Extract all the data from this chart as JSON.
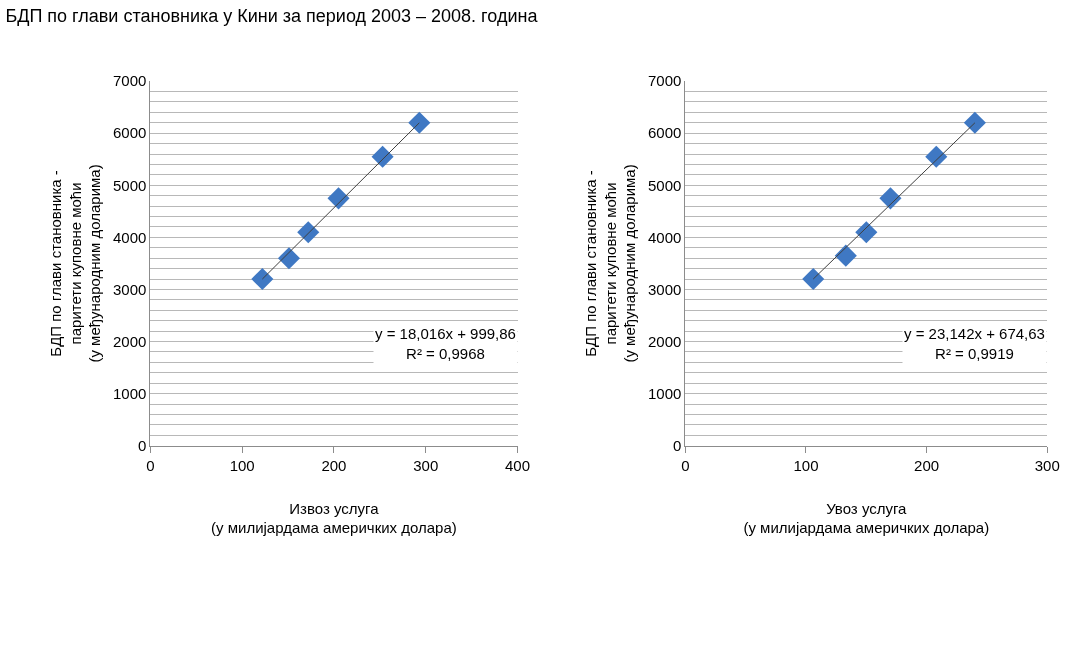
{
  "chart_data": [
    {
      "type": "scatter",
      "title": "БДП по глави становника у Кини за период 2003 – 2008. година",
      "xlabel": "Извоз услуга\n(у милијардама америчких долара)",
      "ylabel": "БДП по глави становника -\nпаритети куповне моћи\n(у међународним доларима)",
      "series": [
        {
          "color": "#3f78c3",
          "x": [
            122,
            151,
            172,
            205,
            253,
            293
          ],
          "values": [
            3200,
            3600,
            4100,
            4750,
            5550,
            6200
          ]
        },
        {
          "type": "line",
          "color": "#404040",
          "marker": "none",
          "x": [
            122,
            293
          ],
          "values": [
            3200,
            6200
          ]
        }
      ],
      "marker": "diamond",
      "xlim": [
        0,
        400
      ],
      "xticks": [
        0,
        100,
        200,
        300,
        400
      ],
      "ylim": [
        0,
        7000
      ],
      "yticks": [
        0,
        {
          "value": 200,
          "label": null
        },
        {
          "value": 400,
          "label": null
        },
        {
          "value": 600,
          "label": null
        },
        {
          "value": 800,
          "label": null
        },
        1000,
        {
          "value": 1200,
          "label": null
        },
        {
          "value": 1400,
          "label": null
        },
        {
          "value": 1600,
          "label": null
        },
        {
          "value": 1800,
          "label": null
        },
        2000,
        {
          "value": 2200,
          "label": null
        },
        {
          "value": 2400,
          "label": null
        },
        {
          "value": 2600,
          "label": null
        },
        {
          "value": 2800,
          "label": null
        },
        3000,
        {
          "value": 3200,
          "label": null
        },
        {
          "value": 3400,
          "label": null
        },
        {
          "value": 3600,
          "label": null
        },
        {
          "value": 3800,
          "label": null
        },
        4000,
        {
          "value": 4200,
          "label": null
        },
        {
          "value": 4400,
          "label": null
        },
        {
          "value": 4600,
          "label": null
        },
        {
          "value": 4800,
          "label": null
        },
        5000,
        {
          "value": 5200,
          "label": null
        },
        {
          "value": 5400,
          "label": null
        },
        {
          "value": 5600,
          "label": null
        },
        {
          "value": 5800,
          "label": null
        },
        6000,
        {
          "value": 6200,
          "label": null
        },
        {
          "value": 6400,
          "label": null
        },
        {
          "value": 6600,
          "label": null
        },
        {
          "value": 6800,
          "label": null
        },
        7000
      ],
      "grid": "y",
      "annotations": [
        "y = 18,016x + 999,86\nR² = 0,9968"
      ]
    },
    {
      "type": "scatter",
      "xlabel": "Увоз услуга\n(у милијардама америчких долара)",
      "ylabel": "БДП по глави становника -\nпаритети куповне моћи\n(у међународним доларима)",
      "series": [
        {
          "color": "#3f78c3",
          "x": [
            106,
            133,
            150,
            170,
            208,
            240
          ],
          "values": [
            3200,
            3650,
            4100,
            4750,
            5550,
            6200
          ]
        },
        {
          "type": "line",
          "color": "#404040",
          "marker": "none",
          "x": [
            106,
            240
          ],
          "values": [
            3200,
            6200
          ]
        }
      ],
      "marker": "diamond",
      "xlim": [
        0,
        300
      ],
      "xticks": [
        0,
        100,
        200,
        300
      ],
      "ylim": [
        0,
        7000
      ],
      "yticks": [
        0,
        {
          "value": 200,
          "label": null
        },
        {
          "value": 400,
          "label": null
        },
        {
          "value": 600,
          "label": null
        },
        {
          "value": 800,
          "label": null
        },
        1000,
        {
          "value": 1200,
          "label": null
        },
        {
          "value": 1400,
          "label": null
        },
        {
          "value": 1600,
          "label": null
        },
        {
          "value": 1800,
          "label": null
        },
        2000,
        {
          "value": 2200,
          "label": null
        },
        {
          "value": 2400,
          "label": null
        },
        {
          "value": 2600,
          "label": null
        },
        {
          "value": 2800,
          "label": null
        },
        3000,
        {
          "value": 3200,
          "label": null
        },
        {
          "value": 3400,
          "label": null
        },
        {
          "value": 3600,
          "label": null
        },
        {
          "value": 3800,
          "label": null
        },
        4000,
        {
          "value": 4200,
          "label": null
        },
        {
          "value": 4400,
          "label": null
        },
        {
          "value": 4600,
          "label": null
        },
        {
          "value": 4800,
          "label": null
        },
        5000,
        {
          "value": 5200,
          "label": null
        },
        {
          "value": 5400,
          "label": null
        },
        {
          "value": 5600,
          "label": null
        },
        {
          "value": 5800,
          "label": null
        },
        6000,
        {
          "value": 6200,
          "label": null
        },
        {
          "value": 6400,
          "label": null
        },
        {
          "value": 6600,
          "label": null
        },
        {
          "value": 6800,
          "label": null
        },
        7000
      ],
      "grid": "y",
      "annotations": [
        "y = 23,142x + 674,63\nR² = 0,9919"
      ]
    }
  ]
}
